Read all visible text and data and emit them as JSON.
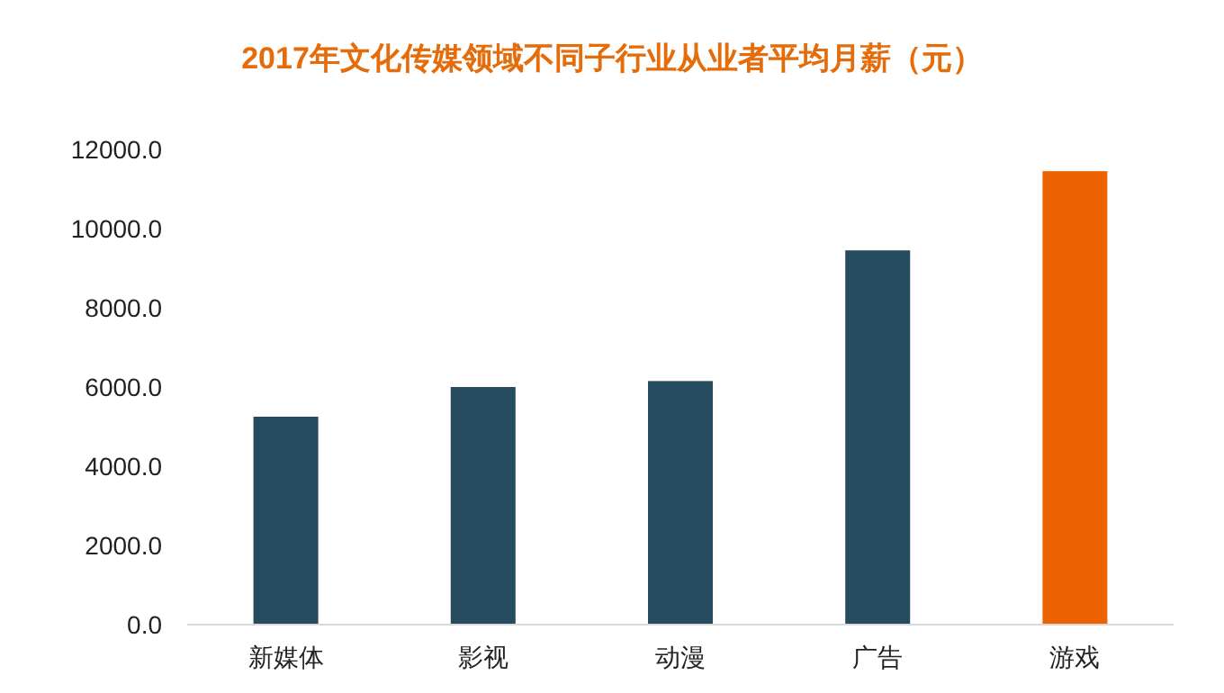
{
  "chart_data": {
    "type": "bar",
    "title": "2017年文化传媒领域不同子行业从业者平均月薪（元）",
    "categories": [
      "新媒体",
      "影视",
      "动漫",
      "广告",
      "游戏"
    ],
    "values": [
      5250,
      6000,
      6150,
      9450,
      11450
    ],
    "colors": [
      "#264a5e",
      "#264a5e",
      "#264a5e",
      "#264a5e",
      "#ec6100"
    ],
    "ylim": [
      0,
      12000
    ],
    "yticks": [
      {
        "value": 0,
        "label": "0.0"
      },
      {
        "value": 2000,
        "label": "2000.0"
      },
      {
        "value": 4000,
        "label": "4000.0"
      },
      {
        "value": 6000,
        "label": "6000.0"
      },
      {
        "value": 8000,
        "label": "8000.0"
      },
      {
        "value": 10000,
        "label": "10000.0"
      },
      {
        "value": 12000,
        "label": "12000.0"
      }
    ],
    "grid": false
  }
}
